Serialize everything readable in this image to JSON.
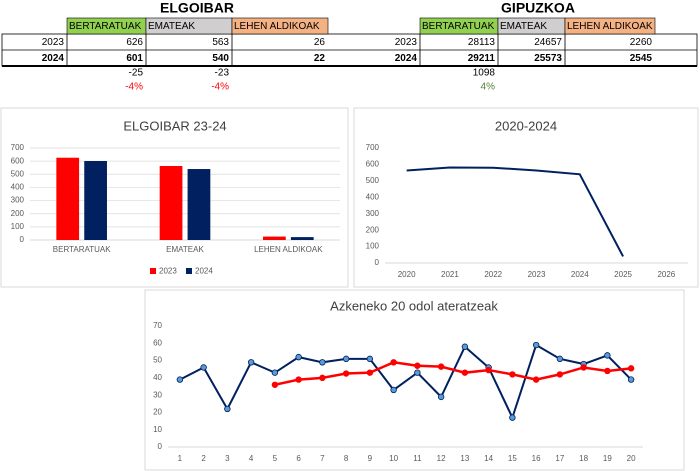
{
  "tables": {
    "elgoibar": {
      "title": "ELGOIBAR",
      "headers": [
        "BERTARATUAK",
        "EMATEAK",
        "LEHEN ALDIKOAK"
      ],
      "header_colors": [
        "#92d050",
        "#d0cece",
        "#f4b183"
      ],
      "rows": [
        [
          "2023",
          626,
          563,
          26
        ],
        [
          "2024",
          601,
          540,
          22
        ]
      ],
      "diff": [
        -25,
        -23
      ],
      "pct": [
        "-4%",
        "-4%"
      ],
      "pct_color": "#ff0000"
    },
    "gipuzkoa": {
      "title": "GIPUZKOA",
      "headers": [
        "BERTARATUAK",
        "EMATEAK",
        "LEHEN ALDIKOAK"
      ],
      "header_colors": [
        "#92d050",
        "#d0cece",
        "#f4b183"
      ],
      "rows": [
        [
          "2023",
          28113,
          24657,
          2260
        ],
        [
          "2024",
          29211,
          25573,
          2545
        ]
      ],
      "diff": [
        1098
      ],
      "pct": [
        "4%"
      ],
      "pct_color": "#548235"
    }
  },
  "chart_data": [
    {
      "type": "bar",
      "title": "ELGOIBAR 23-24",
      "categories": [
        "BERTARATUAK",
        "EMATEAK",
        "LEHEN ALDIKOAK"
      ],
      "series": [
        {
          "name": "2023",
          "color": "#ff0000",
          "values": [
            626,
            563,
            26
          ]
        },
        {
          "name": "2024",
          "color": "#002060",
          "values": [
            601,
            540,
            22
          ]
        }
      ],
      "ylim": [
        0,
        700
      ],
      "yticks": [
        0,
        100,
        200,
        300,
        400,
        500,
        600,
        700
      ],
      "grid": true,
      "legend": "bottom"
    },
    {
      "type": "line",
      "title": "2020-2024",
      "categories": [
        "2020",
        "2021",
        "2022",
        "2023",
        "2024",
        "2025",
        "2026"
      ],
      "series": [
        {
          "color": "#002060",
          "values": [
            563,
            581,
            580,
            563,
            540,
            40,
            null
          ],
          "markers": false
        }
      ],
      "ylim": [
        0,
        700
      ],
      "yticks": [
        0,
        100,
        200,
        300,
        400,
        500,
        600,
        700
      ],
      "grid": false
    },
    {
      "type": "line",
      "title": "Azkeneko 20 odol ateratzeak",
      "categories": [
        "1",
        "2",
        "3",
        "4",
        "5",
        "6",
        "7",
        "8",
        "9",
        "10",
        "11",
        "12",
        "13",
        "14",
        "15",
        "16",
        "17",
        "18",
        "19",
        "20"
      ],
      "series": [
        {
          "color": "#002060",
          "marker_color": "#5b9bd5",
          "values": [
            39,
            46,
            22,
            49,
            43,
            52,
            49,
            51,
            51,
            33,
            43,
            29,
            58,
            46,
            17,
            59,
            51,
            48,
            53,
            39
          ],
          "markers": true
        },
        {
          "color": "#ff0000",
          "marker_color": "#ff0000",
          "values": [
            null,
            null,
            null,
            null,
            36,
            39,
            40,
            42.5,
            43,
            49,
            47,
            46.5,
            43,
            44.5,
            42,
            39,
            42,
            46,
            44,
            45.5
          ],
          "markers": true
        }
      ],
      "ylim": [
        0,
        70
      ],
      "yticks": [
        0,
        10,
        20,
        30,
        40,
        50,
        60,
        70
      ],
      "grid": false
    }
  ]
}
